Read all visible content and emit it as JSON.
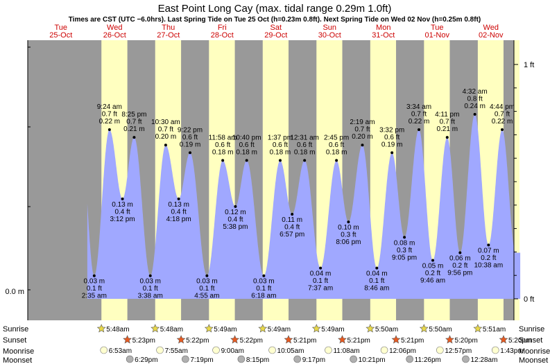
{
  "chart_data": {
    "type": "area",
    "title": "East Point Long Cay (max. tidal range 0.29m 1.0ft)",
    "subtitle": "Times are CST (UTC −6.0hrs). Last Spring Tide on Tue 25 Oct (h=0.23m 0.8ft). Next Spring Tide on Wed 02 Nov (h=0.25m 0.8ft)",
    "left_axis_label": "0.0 m",
    "right_axis_labels": [
      "1 ft",
      "0 ft"
    ],
    "ylim_m": [
      -0.005,
      0.305
    ],
    "days": [
      {
        "dow": "Tue",
        "date": "25-Oct"
      },
      {
        "dow": "Wed",
        "date": "26-Oct"
      },
      {
        "dow": "Thu",
        "date": "27-Oct"
      },
      {
        "dow": "Fri",
        "date": "28-Oct"
      },
      {
        "dow": "Sat",
        "date": "29-Oct"
      },
      {
        "dow": "Sun",
        "date": "30-Oct"
      },
      {
        "dow": "Mon",
        "date": "31-Oct"
      },
      {
        "dow": "Tue",
        "date": "01-Nov"
      },
      {
        "dow": "Wed",
        "date": "02-Nov"
      }
    ],
    "tides": [
      {
        "time": "2:35 am",
        "m": "0.03 m",
        "ft": "0.1 ft",
        "h": 0.03,
        "type": "low"
      },
      {
        "time": "9:24 am",
        "m": "0.22 m",
        "ft": "0.7 ft",
        "h": 0.22,
        "type": "high"
      },
      {
        "time": "3:12 pm",
        "m": "0.13 m",
        "ft": "0.4 ft",
        "h": 0.13,
        "type": "low"
      },
      {
        "time": "8:25 pm",
        "m": "0.21 m",
        "ft": "0.7 ft",
        "h": 0.21,
        "type": "high"
      },
      {
        "time": "3:38 am",
        "m": "0.03 m",
        "ft": "0.1 ft",
        "h": 0.03,
        "type": "low"
      },
      {
        "time": "10:30 am",
        "m": "0.20 m",
        "ft": "0.7 ft",
        "h": 0.2,
        "type": "high"
      },
      {
        "time": "4:18 pm",
        "m": "0.13 m",
        "ft": "0.4 ft",
        "h": 0.13,
        "type": "low"
      },
      {
        "time": "9:22 pm",
        "m": "0.19 m",
        "ft": "0.6 ft",
        "h": 0.19,
        "type": "high"
      },
      {
        "time": "4:55 am",
        "m": "0.03 m",
        "ft": "0.1 ft",
        "h": 0.03,
        "type": "low"
      },
      {
        "time": "11:58 am",
        "m": "0.18 m",
        "ft": "0.6 ft",
        "h": 0.18,
        "type": "high"
      },
      {
        "time": "5:38 pm",
        "m": "0.12 m",
        "ft": "0.4 ft",
        "h": 0.12,
        "type": "low"
      },
      {
        "time": "10:40 pm",
        "m": "0.18 m",
        "ft": "0.6 ft",
        "h": 0.18,
        "type": "high"
      },
      {
        "time": "6:18 am",
        "m": "0.03 m",
        "ft": "0.1 ft",
        "h": 0.03,
        "type": "low"
      },
      {
        "time": "1:37 pm",
        "m": "0.18 m",
        "ft": "0.6 ft",
        "h": 0.18,
        "type": "high"
      },
      {
        "time": "6:57 pm",
        "m": "0.11 m",
        "ft": "0.4 ft",
        "h": 0.11,
        "type": "low"
      },
      {
        "time": "12:31 am",
        "m": "0.18 m",
        "ft": "0.6 ft",
        "h": 0.18,
        "type": "high"
      },
      {
        "time": "7:37 am",
        "m": "0.04 m",
        "ft": "0.1 ft",
        "h": 0.04,
        "type": "low"
      },
      {
        "time": "2:45 pm",
        "m": "0.18 m",
        "ft": "0.6 ft",
        "h": 0.18,
        "type": "high"
      },
      {
        "time": "8:06 pm",
        "m": "0.10 m",
        "ft": "0.3 ft",
        "h": 0.1,
        "type": "low"
      },
      {
        "time": "2:19 am",
        "m": "0.20 m",
        "ft": "0.7 ft",
        "h": 0.2,
        "type": "high"
      },
      {
        "time": "8:46 am",
        "m": "0.04 m",
        "ft": "0.1 ft",
        "h": 0.04,
        "type": "low"
      },
      {
        "time": "3:32 pm",
        "m": "0.19 m",
        "ft": "0.6 ft",
        "h": 0.19,
        "type": "high"
      },
      {
        "time": "9:05 pm",
        "m": "0.08 m",
        "ft": "0.3 ft",
        "h": 0.08,
        "type": "low"
      },
      {
        "time": "3:34 am",
        "m": "0.22 m",
        "ft": "0.7 ft",
        "h": 0.22,
        "type": "high"
      },
      {
        "time": "9:46 am",
        "m": "0.05 m",
        "ft": "0.2 ft",
        "h": 0.05,
        "type": "low"
      },
      {
        "time": "4:11 pm",
        "m": "0.21 m",
        "ft": "0.7 ft",
        "h": 0.21,
        "type": "high"
      },
      {
        "time": "9:56 pm",
        "m": "0.06 m",
        "ft": "0.2 ft",
        "h": 0.06,
        "type": "low"
      },
      {
        "time": "4:32 am",
        "m": "0.24 m",
        "ft": "0.8 ft",
        "h": 0.24,
        "type": "high"
      },
      {
        "time": "10:38 am",
        "m": "0.07 m",
        "ft": "0.2 ft",
        "h": 0.07,
        "type": "low"
      },
      {
        "time": "4:44 pm",
        "m": "0.22 m",
        "ft": "0.7 ft",
        "h": 0.22,
        "type": "high"
      }
    ],
    "row_labels": [
      "Sunrise",
      "Sunset",
      "Moonrise",
      "Moonset"
    ],
    "sunrise": [
      "5:48am",
      "5:48am",
      "5:49am",
      "5:49am",
      "5:49am",
      "5:50am",
      "5:50am",
      "5:51am"
    ],
    "sunset": [
      "5:23pm",
      "5:22pm",
      "5:22pm",
      "5:21pm",
      "5:21pm",
      "5:21pm",
      "5:20pm",
      "5:20pm"
    ],
    "moonrise": [
      "6:53am",
      "7:55am",
      "9:00am",
      "10:05am",
      "11:08am",
      "12:06pm",
      "12:57pm",
      "1:43pm"
    ],
    "moonset": [
      "6:29pm",
      "7:19pm",
      "8:15pm",
      "9:17pm",
      "10:21pm",
      "11:26pm",
      "12:28am"
    ],
    "colors": {
      "night": "#999999",
      "day": "#ffffc0",
      "water": "#a0a8ff",
      "day_label": "#cc0000",
      "sun": "#e8d84a",
      "sunset": "#e85a20",
      "moonrise": "#ffffd0",
      "moonset": "#b0b0b0"
    }
  }
}
